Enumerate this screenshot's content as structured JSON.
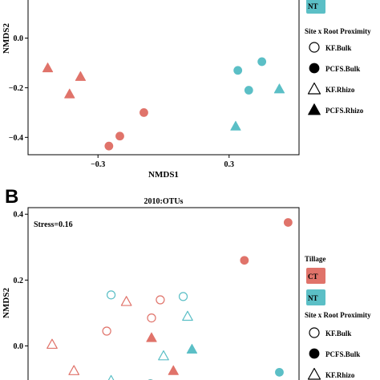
{
  "colors": {
    "ct": "#e0736a",
    "nt": "#5bbfc6",
    "axis": "#000000"
  },
  "chart_data": [
    {
      "type": "scatter",
      "title": "",
      "xlabel": "NMDS1",
      "ylabel": "NMDS2",
      "xlim": [
        -0.62,
        0.62
      ],
      "ylim": [
        -0.47,
        0.16
      ],
      "xticks": [
        {
          "v": -0.3,
          "label": "−0.3"
        },
        {
          "v": 0.3,
          "label": "0.3"
        }
      ],
      "yticks": [
        {
          "v": 0.0,
          "label": "0.0"
        },
        {
          "v": -0.2,
          "label": "−0.2"
        },
        {
          "v": -0.4,
          "label": "−0.4"
        }
      ],
      "points": [
        {
          "x": -0.53,
          "y": -0.12,
          "tillage": "CT",
          "group": "PCFS.Rhizo"
        },
        {
          "x": -0.38,
          "y": -0.155,
          "tillage": "CT",
          "group": "PCFS.Rhizo"
        },
        {
          "x": -0.43,
          "y": -0.225,
          "tillage": "CT",
          "group": "PCFS.Rhizo"
        },
        {
          "x": -0.09,
          "y": -0.3,
          "tillage": "CT",
          "group": "PCFS.Bulk"
        },
        {
          "x": -0.2,
          "y": -0.395,
          "tillage": "CT",
          "group": "PCFS.Bulk"
        },
        {
          "x": -0.25,
          "y": -0.435,
          "tillage": "CT",
          "group": "PCFS.Bulk"
        },
        {
          "x": 0.34,
          "y": -0.13,
          "tillage": "NT",
          "group": "PCFS.Bulk"
        },
        {
          "x": 0.45,
          "y": -0.095,
          "tillage": "NT",
          "group": "PCFS.Bulk"
        },
        {
          "x": 0.39,
          "y": -0.21,
          "tillage": "NT",
          "group": "PCFS.Bulk"
        },
        {
          "x": 0.53,
          "y": -0.205,
          "tillage": "NT",
          "group": "PCFS.Rhizo"
        },
        {
          "x": 0.33,
          "y": -0.355,
          "tillage": "NT",
          "group": "PCFS.Rhizo"
        }
      ],
      "legend": {
        "tillage_title": "Tillage",
        "tillage": [
          {
            "label": "NT",
            "key": "nt"
          }
        ],
        "shape_title": "Site x Root Proximity",
        "shapes": [
          {
            "label": "KF.Bulk",
            "shape": "circle-open"
          },
          {
            "label": "PCFS.Bulk",
            "shape": "circle-filled"
          },
          {
            "label": "KF.Rhizo",
            "shape": "triangle-open"
          },
          {
            "label": "PCFS.Rhizo",
            "shape": "triangle-filled"
          }
        ]
      }
    },
    {
      "type": "scatter",
      "panel_letter": "B",
      "title": "2010:OTUs",
      "annotation": "Stress=0.16",
      "xlabel": "",
      "ylabel": "NMDS2",
      "xlim": [
        -0.62,
        0.62
      ],
      "ylim": [
        -0.14,
        0.42
      ],
      "yticks": [
        {
          "v": 0.4,
          "label": "0.4"
        },
        {
          "v": 0.2,
          "label": "0.2"
        },
        {
          "v": 0.0,
          "label": "0.0"
        }
      ],
      "points": [
        {
          "x": 0.57,
          "y": 0.375,
          "tillage": "CT",
          "group": "PCFS.Bulk"
        },
        {
          "x": 0.37,
          "y": 0.26,
          "tillage": "CT",
          "group": "PCFS.Bulk"
        },
        {
          "x": -0.055,
          "y": 0.085,
          "tillage": "CT",
          "group": "KF.Bulk"
        },
        {
          "x": -0.015,
          "y": 0.14,
          "tillage": "CT",
          "group": "KF.Bulk"
        },
        {
          "x": -0.26,
          "y": 0.045,
          "tillage": "CT",
          "group": "KF.Bulk"
        },
        {
          "x": -0.17,
          "y": 0.135,
          "tillage": "CT",
          "group": "KF.Rhizo"
        },
        {
          "x": -0.51,
          "y": 0.005,
          "tillage": "CT",
          "group": "KF.Rhizo"
        },
        {
          "x": -0.055,
          "y": 0.025,
          "tillage": "CT",
          "group": "PCFS.Rhizo"
        },
        {
          "x": -0.41,
          "y": -0.075,
          "tillage": "CT",
          "group": "KF.Rhizo"
        },
        {
          "x": -0.06,
          "y": -0.115,
          "tillage": "CT",
          "group": "KF.Bulk"
        },
        {
          "x": 0.045,
          "y": -0.075,
          "tillage": "CT",
          "group": "PCFS.Rhizo"
        },
        {
          "x": -0.24,
          "y": 0.155,
          "tillage": "NT",
          "group": "KF.Bulk"
        },
        {
          "x": 0.09,
          "y": 0.15,
          "tillage": "NT",
          "group": "KF.Bulk"
        },
        {
          "x": 0.11,
          "y": 0.09,
          "tillage": "NT",
          "group": "KF.Rhizo"
        },
        {
          "x": 0.0,
          "y": -0.03,
          "tillage": "NT",
          "group": "KF.Rhizo"
        },
        {
          "x": 0.13,
          "y": -0.01,
          "tillage": "NT",
          "group": "PCFS.Rhizo"
        },
        {
          "x": -0.24,
          "y": -0.105,
          "tillage": "NT",
          "group": "KF.Rhizo"
        },
        {
          "x": -0.06,
          "y": -0.115,
          "tillage": "NT",
          "group": "KF.Bulk"
        },
        {
          "x": 0.53,
          "y": -0.08,
          "tillage": "NT",
          "group": "PCFS.Bulk"
        }
      ],
      "legend": {
        "tillage_title": "Tillage",
        "tillage": [
          {
            "label": "CT",
            "key": "ct"
          },
          {
            "label": "NT",
            "key": "nt"
          }
        ],
        "shape_title": "Site x Root Proximity",
        "shapes": [
          {
            "label": "KF.Bulk",
            "shape": "circle-open"
          },
          {
            "label": "PCFS.Bulk",
            "shape": "circle-filled"
          },
          {
            "label": "KF.Rhizo",
            "shape": "triangle-open"
          }
        ]
      }
    }
  ]
}
